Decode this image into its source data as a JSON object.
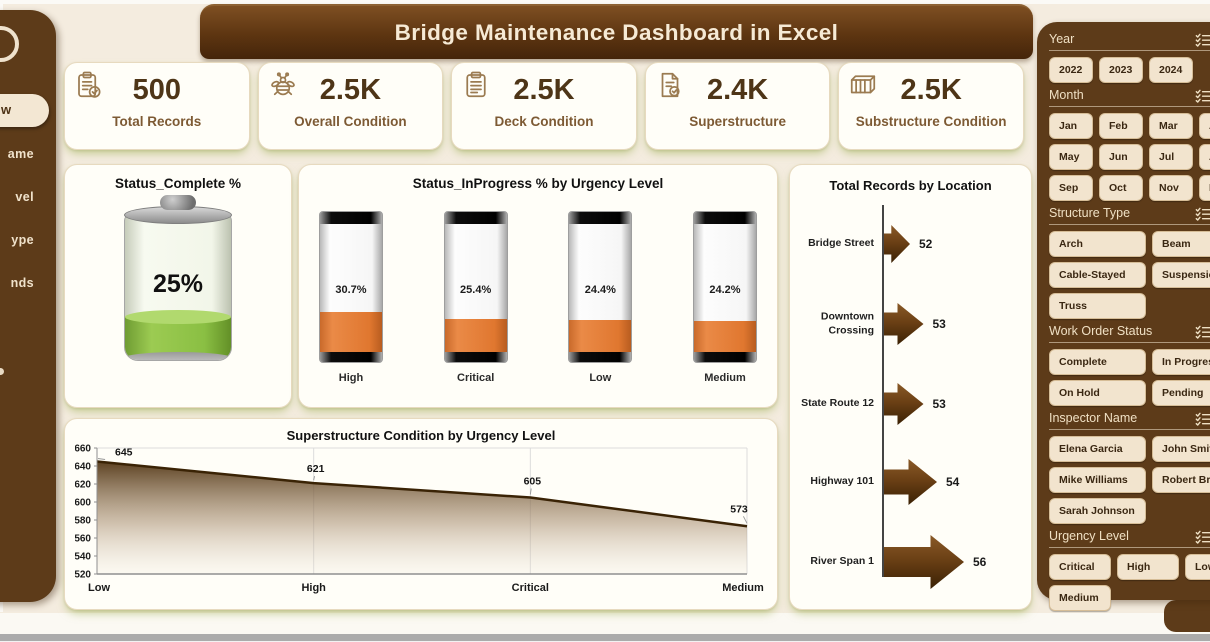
{
  "window": {
    "title": "Bridge Maintenance Dashboard in Excel"
  },
  "sidebar": {
    "items": [
      {
        "label": "w",
        "active": true
      },
      {
        "label": "ame",
        "active": false
      },
      {
        "label": "vel",
        "active": false
      },
      {
        "label": "ype",
        "active": false
      },
      {
        "label": "nds",
        "active": false
      }
    ]
  },
  "kpis": [
    {
      "icon": "clipboard-check-icon",
      "value": "500",
      "label": "Total Records"
    },
    {
      "icon": "bee-icon",
      "value": "2.5K",
      "label": "Overall Condition"
    },
    {
      "icon": "clipboard-list-icon",
      "value": "2.5K",
      "label": "Deck Condition"
    },
    {
      "icon": "document-check-icon",
      "value": "2.4K",
      "label": "Superstructure"
    },
    {
      "icon": "container-icon",
      "value": "2.5K",
      "label": "Substructure Condition"
    }
  ],
  "chart_data": [
    {
      "type": "gauge",
      "title": "Status_Complete %",
      "value_pct": 25,
      "label": "25%",
      "fill_color": "#8abf43"
    },
    {
      "type": "bar",
      "subtype": "battery",
      "title": "Status_InProgress % by Urgency Level",
      "categories": [
        "High",
        "Critical",
        "Low",
        "Medium"
      ],
      "values": [
        30.7,
        25.4,
        24.4,
        24.2
      ],
      "value_labels": [
        "30.7%",
        "25.4%",
        "24.4%",
        "24.2%"
      ],
      "fill_color": "#e0772f"
    },
    {
      "type": "bar",
      "subtype": "arrow",
      "title": "Total Records by Location",
      "categories": [
        "Bridge Street",
        "Downtown Crossing",
        "State Route 12",
        "Highway 101",
        "River Span 1"
      ],
      "values": [
        52,
        53,
        53,
        54,
        56
      ],
      "bar_color": "#6b4015"
    },
    {
      "type": "area",
      "title": "Superstructure Condition by Urgency Level",
      "categories": [
        "Low",
        "High",
        "Critical",
        "Medium"
      ],
      "values": [
        645,
        621,
        605,
        573
      ],
      "ylim": [
        520,
        660
      ],
      "yticks": [
        660,
        640,
        620,
        600,
        580,
        560,
        540,
        520
      ],
      "grid": true,
      "line_color": "#3a2305"
    }
  ],
  "slicers": [
    {
      "label": "Year",
      "size": "small",
      "options": [
        "2022",
        "2023",
        "2024"
      ]
    },
    {
      "label": "Month",
      "size": "small",
      "options": [
        "Jan",
        "Feb",
        "Mar",
        "Apr",
        "May",
        "Jun",
        "Jul",
        "Aug",
        "Sep",
        "Oct",
        "Nov",
        "Dec"
      ]
    },
    {
      "label": "Structure Type",
      "size": "wide",
      "options": [
        "Arch",
        "Beam",
        "Cable-Stayed",
        "Suspension",
        "Truss"
      ]
    },
    {
      "label": "Work Order Status",
      "size": "wide",
      "options": [
        "Complete",
        "In Progress",
        "On Hold",
        "Pending"
      ]
    },
    {
      "label": "Inspector Name",
      "size": "wide",
      "options": [
        "Elena Garcia",
        "John Smith",
        "Mike Williams",
        "Robert Brown",
        "Sarah Johnson"
      ]
    },
    {
      "label": "Urgency Level",
      "size": "medium",
      "options": [
        "Critical",
        "High",
        "Low",
        "Medium"
      ]
    }
  ],
  "colors": {
    "panel_brown": "#5d3b19",
    "banner_brown": "#5d3511",
    "page_bg": "#f4ecdf",
    "card_bg": "#fffef8",
    "battery_orange": "#e0772f",
    "gauge_green": "#8abf43",
    "arrow_brown": "#6b4015",
    "kpi_text": "#4e3517"
  }
}
